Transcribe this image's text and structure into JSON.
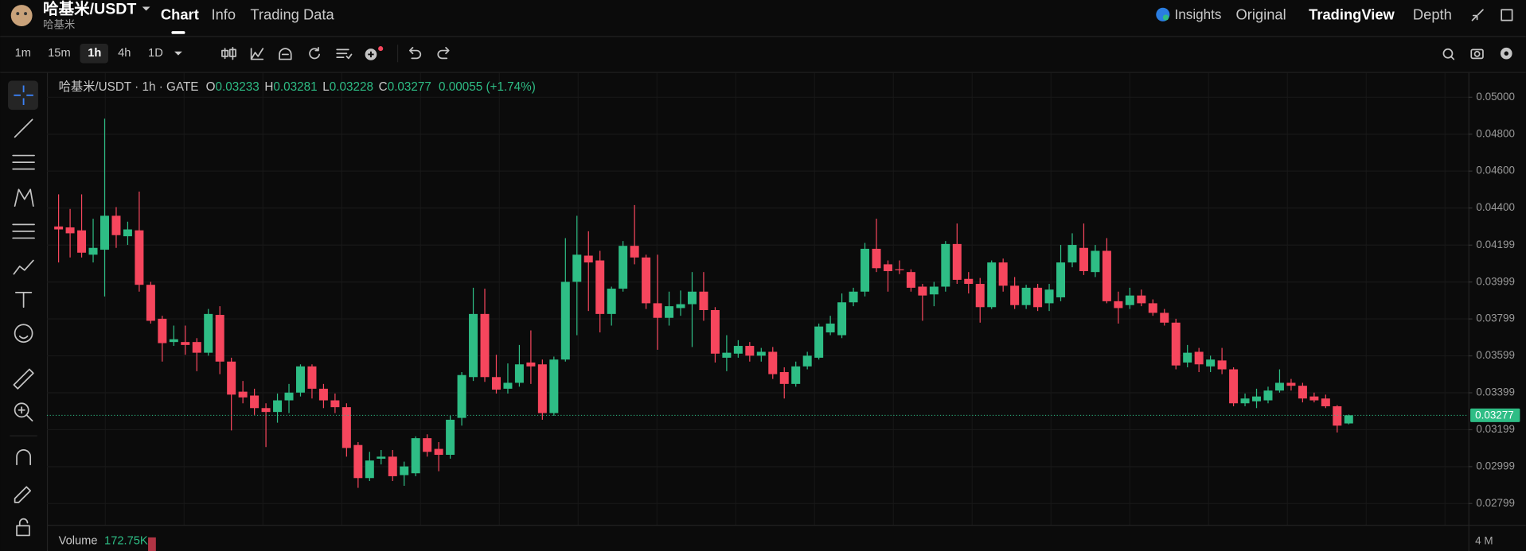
{
  "header": {
    "pair": "哈基米/USDT",
    "name": "哈基米",
    "tabs": [
      "Chart",
      "Info",
      "Trading Data"
    ],
    "views": [
      "Insights",
      "Original",
      "TradingView",
      "Depth"
    ]
  },
  "toolbar": {
    "intervals": [
      "1m",
      "15m",
      "1h",
      "4h",
      "1D"
    ]
  },
  "legend": {
    "symbol": "哈基米/USDT · 1h · GATE",
    "open_label": "O",
    "high_label": "H",
    "low_label": "L",
    "close_label": "C",
    "change": "0.00055 (+1.74%)"
  },
  "volume": {
    "label": "Volume",
    "value": "172.75K",
    "scale": "4 M"
  },
  "chart_data": {
    "type": "candlestick",
    "open": [
      0.043,
      0.04295,
      0.04279,
      0.04147,
      0.04174,
      0.04358,
      0.04247,
      0.04279,
      0.03984,
      0.038,
      0.03674,
      0.03674,
      0.03674,
      0.03616,
      0.03821,
      0.03568,
      0.03405,
      0.03384,
      0.03316,
      0.03295,
      0.03358,
      0.034,
      0.03542,
      0.03421,
      0.03358,
      0.03321,
      0.03116,
      0.02937,
      0.03042,
      0.03053,
      0.02953,
      0.02963,
      0.03153,
      0.03095,
      0.03063,
      0.03263,
      0.03484,
      0.03826,
      0.03484,
      0.03421,
      0.03453,
      0.03563,
      0.03553,
      0.03289,
      0.03579,
      0.04,
      0.04142,
      0.04116,
      0.03826,
      0.03963,
      0.04195,
      0.04132,
      0.03884,
      0.03805,
      0.03858,
      0.03879,
      0.03947,
      0.03847,
      0.03589,
      0.03611,
      0.03653,
      0.036,
      0.03621,
      0.03511,
      0.03447,
      0.03542,
      0.03589,
      0.03726,
      0.03711,
      0.03889,
      0.03947,
      0.04179,
      0.04095,
      0.04068,
      0.04053,
      0.03974,
      0.03932,
      0.03974,
      0.04205,
      0.04016,
      0.03989,
      0.03863,
      0.04105,
      0.03979,
      0.03874,
      0.03968,
      0.03884,
      0.03916,
      0.04105,
      0.04184,
      0.04053,
      0.04168,
      0.03895,
      0.03874,
      0.03926,
      0.03884,
      0.03832,
      0.03779,
      0.03563,
      0.03621,
      0.03542,
      0.03574,
      0.03526,
      0.03342,
      0.03353,
      0.03358,
      0.03411,
      0.03453,
      0.03437,
      0.03379,
      0.03368,
      0.03326,
      0.03233
    ],
    "high": [
      0.04474,
      0.04395,
      0.04474,
      0.04342,
      0.04884,
      0.04405,
      0.04326,
      0.04489,
      0.04,
      0.03816,
      0.03763,
      0.03763,
      0.03695,
      0.03853,
      0.03868,
      0.03589,
      0.03463,
      0.03421,
      0.03342,
      0.03395,
      0.03447,
      0.03553,
      0.03553,
      0.03447,
      0.03395,
      0.03342,
      0.03132,
      0.03079,
      0.03089,
      0.03089,
      0.03026,
      0.03163,
      0.03174,
      0.03132,
      0.03274,
      0.03511,
      0.03968,
      0.03963,
      0.03605,
      0.03558,
      0.03658,
      0.03737,
      0.03579,
      0.03595,
      0.04237,
      0.04358,
      0.04274,
      0.04168,
      0.03974,
      0.04221,
      0.04416,
      0.04147,
      0.04147,
      0.03947,
      0.03953,
      0.04053,
      0.04053,
      0.03863,
      0.03711,
      0.03684,
      0.03674,
      0.03642,
      0.03647,
      0.03537,
      0.03568,
      0.03621,
      0.03774,
      0.03816,
      0.03937,
      0.03968,
      0.04211,
      0.04342,
      0.04116,
      0.04116,
      0.04068,
      0.03989,
      0.04,
      0.04221,
      0.04316,
      0.04053,
      0.04021,
      0.04116,
      0.04126,
      0.04026,
      0.03984,
      0.03989,
      0.03989,
      0.042,
      0.04263,
      0.04316,
      0.042,
      0.04237,
      0.03947,
      0.03968,
      0.03958,
      0.03905,
      0.03853,
      0.038,
      0.03658,
      0.03642,
      0.036,
      0.03642,
      0.03537,
      0.03395,
      0.03421,
      0.03432,
      0.03526,
      0.03474,
      0.03453,
      0.034,
      0.03389,
      0.03332,
      0.03281
    ],
    "low": [
      0.04105,
      0.04132,
      0.04132,
      0.04105,
      0.03921,
      0.04184,
      0.042,
      0.03947,
      0.03774,
      0.03568,
      0.03653,
      0.03605,
      0.03516,
      0.036,
      0.035,
      0.03195,
      0.03342,
      0.03279,
      0.03105,
      0.03237,
      0.03289,
      0.03379,
      0.03368,
      0.03316,
      0.03289,
      0.03053,
      0.02884,
      0.02921,
      0.03011,
      0.02921,
      0.02895,
      0.02947,
      0.03053,
      0.02974,
      0.03042,
      0.03221,
      0.03463,
      0.03458,
      0.03395,
      0.03395,
      0.03432,
      0.03447,
      0.03253,
      0.03274,
      0.03568,
      0.03711,
      0.03842,
      0.03726,
      0.03763,
      0.03947,
      0.04095,
      0.03853,
      0.03632,
      0.03763,
      0.03816,
      0.03647,
      0.03789,
      0.03563,
      0.03516,
      0.03589,
      0.03568,
      0.03568,
      0.03474,
      0.03368,
      0.03432,
      0.03526,
      0.03579,
      0.03711,
      0.03695,
      0.03868,
      0.03921,
      0.04053,
      0.03947,
      0.04042,
      0.03947,
      0.03789,
      0.03868,
      0.03947,
      0.03989,
      0.03937,
      0.03779,
      0.03853,
      0.03947,
      0.03853,
      0.03853,
      0.03842,
      0.03842,
      0.03895,
      0.04079,
      0.04037,
      0.04026,
      0.03884,
      0.03774,
      0.03853,
      0.03868,
      0.03816,
      0.03763,
      0.03526,
      0.03537,
      0.03511,
      0.03511,
      0.035,
      0.03326,
      0.03326,
      0.03316,
      0.03342,
      0.034,
      0.03411,
      0.03347,
      0.03347,
      0.03316,
      0.03184,
      0.03228
    ],
    "close": [
      0.04284,
      0.04263,
      0.04158,
      0.04184,
      0.04358,
      0.04253,
      0.04284,
      0.03984,
      0.03789,
      0.03668,
      0.03689,
      0.03658,
      0.03616,
      0.03826,
      0.03568,
      0.03389,
      0.03374,
      0.03316,
      0.03295,
      0.03358,
      0.034,
      0.03542,
      0.03421,
      0.03358,
      0.03321,
      0.031,
      0.02937,
      0.03032,
      0.03053,
      0.02947,
      0.03,
      0.03153,
      0.03079,
      0.03063,
      0.03253,
      0.03495,
      0.03826,
      0.03484,
      0.03416,
      0.03453,
      0.03553,
      0.03542,
      0.03289,
      0.03579,
      0.04,
      0.04147,
      0.04105,
      0.03826,
      0.03963,
      0.04195,
      0.04132,
      0.03884,
      0.03805,
      0.03868,
      0.03879,
      0.03947,
      0.03847,
      0.03611,
      0.03616,
      0.03653,
      0.036,
      0.03621,
      0.035,
      0.03447,
      0.03542,
      0.036,
      0.03758,
      0.03774,
      0.03889,
      0.03947,
      0.04179,
      0.04074,
      0.04058,
      0.04063,
      0.03968,
      0.03926,
      0.03974,
      0.04205,
      0.04011,
      0.03989,
      0.03863,
      0.04105,
      0.03979,
      0.03874,
      0.03968,
      0.03863,
      0.03958,
      0.04105,
      0.042,
      0.04058,
      0.04168,
      0.03895,
      0.03858,
      0.03926,
      0.03884,
      0.03832,
      0.03779,
      0.03547,
      0.03616,
      0.03553,
      0.03579,
      0.03526,
      0.03342,
      0.03368,
      0.03379,
      0.03411,
      0.03453,
      0.03437,
      0.03368,
      0.03358,
      0.03326,
      0.03221,
      0.03277
    ],
    "up_color": "#2ebd85",
    "down_color": "#f6465d",
    "ylim": [
      0.02684,
      0.05132
    ],
    "yticks": [
      {
        "value": 0.05,
        "label": "0.05000"
      },
      {
        "value": 0.048,
        "label": "0.04800"
      },
      {
        "value": 0.046,
        "label": "0.04600"
      },
      {
        "value": 0.044,
        "label": "0.04400"
      },
      0.04199,
      0.03999,
      0.03799,
      0.03599,
      0.03399,
      0.03199,
      0.02999,
      0.02799
    ],
    "grid": true,
    "last_price_line": true
  }
}
